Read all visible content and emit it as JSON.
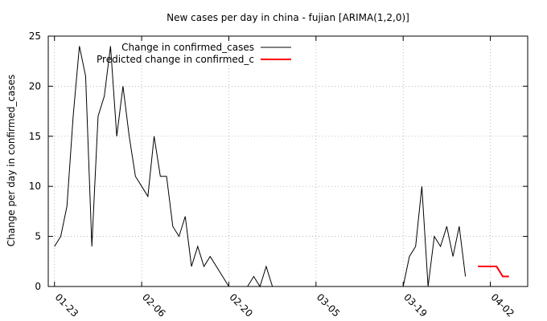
{
  "chart_data": {
    "type": "line",
    "title": "New cases per day in china - fujian [ARIMA(1,2,0)]",
    "ylabel": "Change per day in confirmed_cases",
    "xlabel": "",
    "x_range": [
      "2020-01-22",
      "2020-04-08"
    ],
    "ylim": [
      0,
      25
    ],
    "y_ticks": [
      0,
      5,
      10,
      15,
      20,
      25
    ],
    "x_ticks": [
      {
        "date": "2020-01-23",
        "label": "01-23"
      },
      {
        "date": "2020-02-06",
        "label": "02-06"
      },
      {
        "date": "2020-02-20",
        "label": "02-20"
      },
      {
        "date": "2020-03-05",
        "label": "03-05"
      },
      {
        "date": "2020-03-19",
        "label": "03-19"
      },
      {
        "date": "2020-04-02",
        "label": "04-02"
      }
    ],
    "x_tick_rotation": "45 degrees clockwise",
    "grid": true,
    "legend_position": "top-left",
    "series": [
      {
        "name": "Change in confirmed_cases",
        "color": "#000000",
        "x": [
          "2020-01-23",
          "2020-01-24",
          "2020-01-25",
          "2020-01-26",
          "2020-01-27",
          "2020-01-28",
          "2020-01-29",
          "2020-01-30",
          "2020-01-31",
          "2020-02-01",
          "2020-02-02",
          "2020-02-03",
          "2020-02-04",
          "2020-02-05",
          "2020-02-06",
          "2020-02-07",
          "2020-02-08",
          "2020-02-09",
          "2020-02-10",
          "2020-02-11",
          "2020-02-12",
          "2020-02-13",
          "2020-02-14",
          "2020-02-15",
          "2020-02-16",
          "2020-02-17",
          "2020-02-18",
          "2020-02-19",
          "2020-02-20",
          "2020-02-21",
          "2020-02-22",
          "2020-02-23",
          "2020-02-24",
          "2020-02-25",
          "2020-02-26",
          "2020-02-27",
          "2020-02-28",
          "2020-02-29",
          "2020-03-01",
          "2020-03-02",
          "2020-03-03",
          "2020-03-04",
          "2020-03-05",
          "2020-03-06",
          "2020-03-07",
          "2020-03-08",
          "2020-03-09",
          "2020-03-10",
          "2020-03-11",
          "2020-03-12",
          "2020-03-13",
          "2020-03-14",
          "2020-03-15",
          "2020-03-16",
          "2020-03-17",
          "2020-03-18",
          "2020-03-19",
          "2020-03-20",
          "2020-03-21",
          "2020-03-22",
          "2020-03-23",
          "2020-03-24",
          "2020-03-25",
          "2020-03-26",
          "2020-03-27",
          "2020-03-28",
          "2020-03-29"
        ],
        "y": [
          4,
          5,
          8,
          17,
          24,
          21,
          4,
          17,
          19,
          24,
          15,
          20,
          15,
          11,
          10,
          9,
          15,
          11,
          11,
          6,
          5,
          7,
          2,
          4,
          2,
          3,
          2,
          1,
          0,
          0,
          0,
          0,
          1,
          0,
          2,
          0,
          0,
          0,
          0,
          0,
          0,
          0,
          0,
          0,
          0,
          0,
          0,
          0,
          0,
          0,
          0,
          0,
          0,
          0,
          0,
          0,
          0,
          3,
          4,
          10,
          0,
          5,
          4,
          6,
          3,
          6,
          1
        ]
      },
      {
        "name": "Predicted change in confirmed_c",
        "color": "#ff0000",
        "x": [
          "2020-03-31",
          "2020-04-01",
          "2020-04-02",
          "2020-04-03",
          "2020-04-04",
          "2020-04-05"
        ],
        "y": [
          2,
          2,
          2,
          2,
          1,
          1
        ]
      }
    ]
  }
}
